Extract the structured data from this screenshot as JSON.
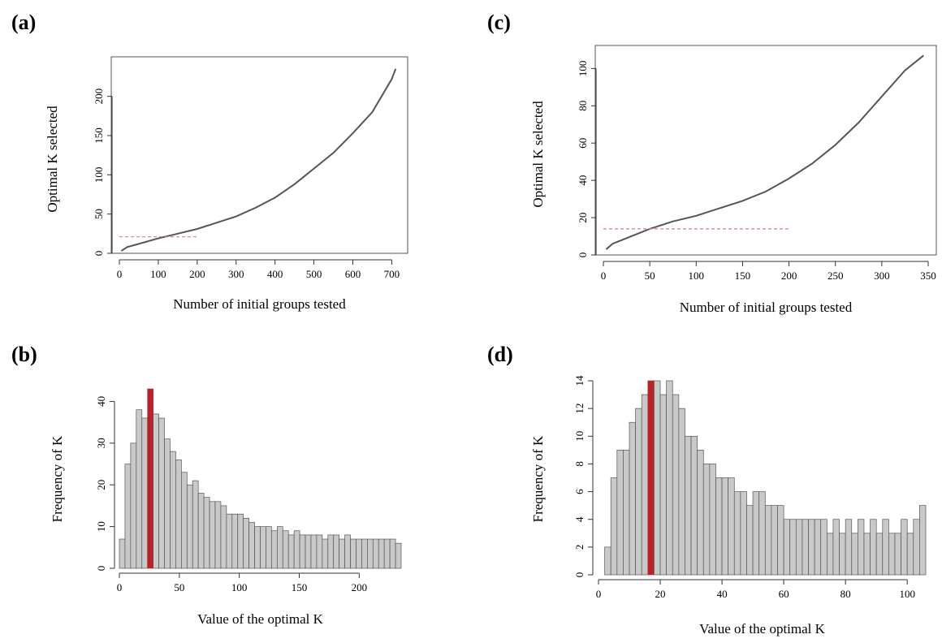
{
  "chart_data": [
    {
      "panel": "(a)",
      "type": "line",
      "xlabel": "Number of initial groups tested",
      "ylabel": "Optimal K selected",
      "xlim": [
        0,
        720
      ],
      "ylim": [
        0,
        240
      ],
      "xticks": [
        0,
        100,
        200,
        300,
        400,
        500,
        600,
        700
      ],
      "yticks": [
        0,
        50,
        100,
        150,
        200
      ],
      "x": [
        5,
        20,
        50,
        100,
        150,
        200,
        250,
        300,
        350,
        400,
        450,
        500,
        550,
        600,
        650,
        700,
        710
      ],
      "y": [
        3,
        8,
        12,
        19,
        25,
        31,
        39,
        47,
        58,
        71,
        88,
        108,
        128,
        153,
        180,
        222,
        235
      ],
      "reference_line": {
        "y": 21,
        "x_from": 0,
        "x_to": 200,
        "color": "#e07b7b"
      }
    },
    {
      "panel": "(b)",
      "type": "bar",
      "xlabel": "Value of the optimal K",
      "ylabel": "Frequency of K",
      "xlim": [
        0,
        235
      ],
      "ylim": [
        0,
        43
      ],
      "xticks": [
        0,
        50,
        100,
        150,
        200
      ],
      "yticks": [
        0,
        10,
        20,
        30,
        40
      ],
      "bin_start": 0,
      "bin_width": 4.7,
      "values": [
        7,
        25,
        30,
        38,
        36,
        43,
        37,
        36,
        31,
        28,
        26,
        23,
        20,
        21,
        18,
        17,
        16,
        16,
        15,
        13,
        13,
        13,
        12,
        11,
        10,
        10,
        10,
        9,
        10,
        9,
        8,
        9,
        8,
        8,
        8,
        8,
        7,
        8,
        8,
        7,
        8,
        7,
        7,
        7,
        7,
        7,
        7,
        7,
        7,
        6
      ],
      "highlight_index": 5,
      "bar_color": "#c9c9c9",
      "highlight_color": "#b8232b"
    },
    {
      "panel": "(c)",
      "type": "line",
      "xlabel": "Number of initial groups tested",
      "ylabel": "Optimal K selected",
      "xlim": [
        0,
        350
      ],
      "ylim": [
        0,
        108
      ],
      "xticks": [
        0,
        50,
        100,
        150,
        200,
        250,
        300,
        350
      ],
      "yticks": [
        0,
        20,
        40,
        60,
        80,
        100
      ],
      "x": [
        3,
        10,
        25,
        50,
        75,
        100,
        125,
        150,
        175,
        200,
        225,
        250,
        275,
        300,
        325,
        345
      ],
      "y": [
        3,
        6,
        9,
        14,
        18,
        21,
        25,
        29,
        34,
        41,
        49,
        59,
        71,
        85,
        99,
        107
      ],
      "reference_line": {
        "y": 14,
        "x_from": 0,
        "x_to": 200,
        "color": "#e07b7b"
      }
    },
    {
      "panel": "(d)",
      "type": "bar",
      "xlabel": "Value of the optimal K",
      "ylabel": "Frequency of K",
      "xlim": [
        0,
        106
      ],
      "ylim": [
        0,
        14
      ],
      "xticks": [
        0,
        20,
        40,
        60,
        80,
        100
      ],
      "yticks": [
        0,
        2,
        4,
        6,
        8,
        10,
        12,
        14
      ],
      "bin_start": 2,
      "bin_width": 2,
      "values": [
        2,
        7,
        9,
        9,
        11,
        12,
        13,
        14,
        14,
        13,
        14,
        13,
        12,
        10,
        10,
        9,
        8,
        8,
        7,
        7,
        7,
        6,
        6,
        5,
        6,
        6,
        5,
        5,
        5,
        4,
        4,
        4,
        4,
        4,
        4,
        4,
        3,
        4,
        3,
        4,
        3,
        4,
        3,
        4,
        3,
        4,
        3,
        3,
        4,
        3,
        4,
        5
      ],
      "highlight_index": 7,
      "bar_color": "#c9c9c9",
      "highlight_color": "#b8232b"
    }
  ]
}
